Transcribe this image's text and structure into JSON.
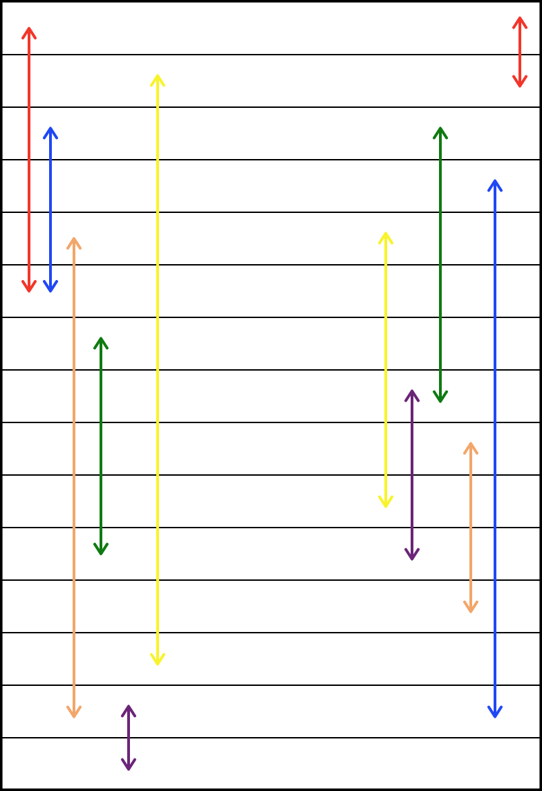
{
  "figure": {
    "row_count": 15,
    "colors": {
      "red": "#f2362b",
      "blue": "#1f48f5",
      "orange": "#f2a66a",
      "green": "#0f7a12",
      "yellow": "#f8f32a",
      "purple": "#6b2478",
      "line": "#000000",
      "background": "#ffffff"
    },
    "arrows": [
      {
        "name": "red-arrow-left",
        "color": "red",
        "start_row": 0.5,
        "end_row": 5.5
      },
      {
        "name": "blue-arrow-left",
        "color": "blue",
        "start_row": 2.4,
        "end_row": 5.5
      },
      {
        "name": "orange-arrow-left",
        "color": "orange",
        "start_row": 4.5,
        "end_row": 13.6
      },
      {
        "name": "green-arrow-left",
        "color": "green",
        "start_row": 6.4,
        "end_row": 10.5
      },
      {
        "name": "yellow-arrow-left",
        "color": "yellow",
        "start_row": 1.4,
        "end_row": 12.6
      },
      {
        "name": "purple-arrow-left",
        "color": "purple",
        "start_row": 13.4,
        "end_row": 14.6
      },
      {
        "name": "yellow-arrow-right",
        "color": "yellow",
        "start_row": 4.4,
        "end_row": 9.6
      },
      {
        "name": "purple-arrow-right",
        "color": "purple",
        "start_row": 7.4,
        "end_row": 10.6
      },
      {
        "name": "green-arrow-right",
        "color": "green",
        "start_row": 2.4,
        "end_row": 7.6
      },
      {
        "name": "orange-arrow-right",
        "color": "orange",
        "start_row": 8.4,
        "end_row": 11.6
      },
      {
        "name": "blue-arrow-right",
        "color": "blue",
        "start_row": 3.4,
        "end_row": 13.6
      },
      {
        "name": "red-arrow-right",
        "color": "red",
        "start_row": 0.3,
        "end_row": 1.6
      }
    ]
  }
}
